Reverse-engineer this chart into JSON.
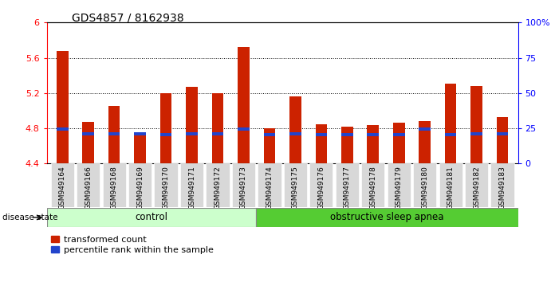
{
  "title": "GDS4857 / 8162938",
  "samples": [
    "GSM949164",
    "GSM949166",
    "GSM949168",
    "GSM949169",
    "GSM949170",
    "GSM949171",
    "GSM949172",
    "GSM949173",
    "GSM949174",
    "GSM949175",
    "GSM949176",
    "GSM949177",
    "GSM949178",
    "GSM949179",
    "GSM949180",
    "GSM949181",
    "GSM949182",
    "GSM949183"
  ],
  "red_values": [
    5.68,
    4.87,
    5.05,
    4.73,
    5.2,
    5.27,
    5.2,
    5.72,
    4.8,
    5.16,
    4.85,
    4.82,
    4.84,
    4.86,
    4.88,
    5.31,
    5.28,
    4.93
  ],
  "blue_values": [
    4.795,
    4.735,
    4.735,
    4.735,
    4.725,
    4.735,
    4.735,
    4.795,
    4.725,
    4.735,
    4.725,
    4.725,
    4.725,
    4.725,
    4.795,
    4.725,
    4.735,
    4.735
  ],
  "ymin": 4.4,
  "ymax": 6.0,
  "yticks": [
    4.4,
    4.8,
    5.2,
    5.6,
    6.0
  ],
  "ytick_labels": [
    "4.4",
    "4.8",
    "5.2",
    "5.6",
    "6"
  ],
  "right_ytick_labels": [
    "0",
    "25",
    "50",
    "75",
    "100%"
  ],
  "bar_color": "#CC2200",
  "blue_color": "#2244CC",
  "bar_width": 0.45,
  "n_control": 8,
  "n_apnea": 10,
  "control_color": "#CCFFCC",
  "apnea_color": "#55CC33",
  "control_label": "control",
  "apnea_label": "obstructive sleep apnea",
  "disease_state_label": "disease state",
  "legend_red_label": "transformed count",
  "legend_blue_label": "percentile rank within the sample",
  "title_fontsize": 10,
  "tick_label_fontsize": 6.5
}
